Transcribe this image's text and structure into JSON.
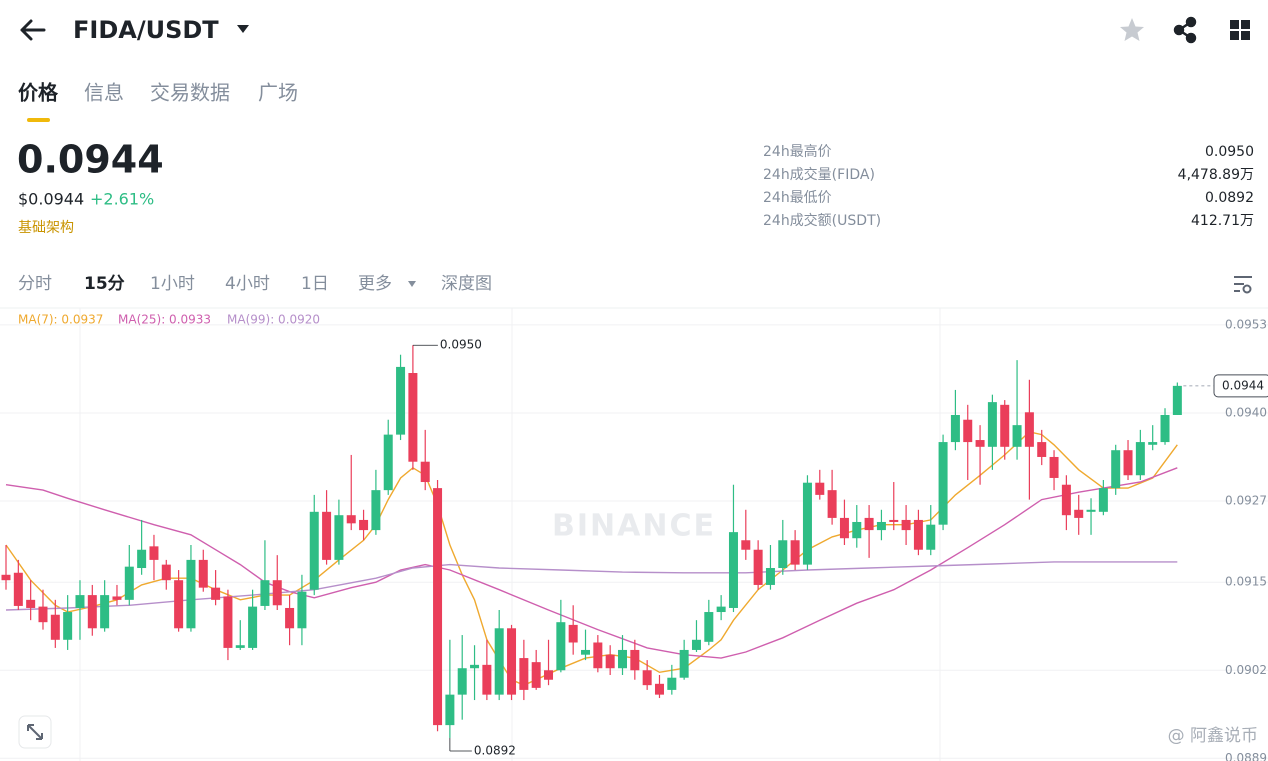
{
  "header": {
    "pair": "FIDA/USDT"
  },
  "tabs": [
    "价格",
    "信息",
    "交易数据",
    "广场"
  ],
  "price": {
    "last": "0.0944",
    "usd": "$0.0944",
    "change": "+2.61%",
    "tag": "基础架构"
  },
  "stats": [
    {
      "label": "24h最高价",
      "value": "0.0950"
    },
    {
      "label": "24h成交量(FIDA)",
      "value": "4,478.89万"
    },
    {
      "label": "24h最低价",
      "value": "0.0892"
    },
    {
      "label": "24h成交额(USDT)",
      "value": "412.71万"
    }
  ],
  "intervals": [
    "分时",
    "15分",
    "1小时",
    "4小时",
    "1日",
    "更多",
    "深度图"
  ],
  "corner_watermark": "@ 阿鑫说币",
  "chart_data": {
    "type": "candlestick",
    "watermark": "BINANCE",
    "up_color": "#2ebd85",
    "down_color": "#ea3e5a",
    "ylim": [
      0.08886,
      0.09555
    ],
    "yticks": [
      0.0953,
      {
        "value": 0.094,
        "label": "0.0940"
      },
      0.0927,
      0.0915,
      0.0902,
      0.0889
    ],
    "grid": true,
    "current_price": 0.0944,
    "max_label": {
      "value": 0.095,
      "label": "0.0950"
    },
    "min_label": {
      "value": 0.0892,
      "label": "0.0892"
    },
    "candles": {
      "open": [
        0.09161,
        0.09164,
        0.09124,
        0.09114,
        0.09102,
        0.09065,
        0.09112,
        0.09131,
        0.09082,
        0.09129,
        0.09124,
        0.09171,
        0.09203,
        0.09176,
        0.09153,
        0.09082,
        0.09183,
        0.09142,
        0.09129,
        0.09053,
        0.09053,
        0.09115,
        0.09153,
        0.09112,
        0.09082,
        0.09139,
        0.09254,
        0.09183,
        0.09249,
        0.09242,
        0.09227,
        0.09286,
        0.09368,
        0.09459,
        0.09328,
        0.09289,
        0.08939,
        0.08984,
        0.09023,
        0.09028,
        0.08984,
        0.09082,
        0.09038,
        0.09032,
        0.0902,
        0.0902,
        0.09087,
        0.09043,
        0.09061,
        0.09043,
        0.09023,
        0.0905,
        0.0902,
        0.09,
        0.08991,
        0.09009,
        0.0905,
        0.09062,
        0.09106,
        0.09112,
        0.09212,
        0.09198,
        0.09146,
        0.09171,
        0.09212,
        0.09176,
        0.09297,
        0.09286,
        0.09245,
        0.09215,
        0.09245,
        0.09227,
        0.09242,
        0.09242,
        0.09242,
        0.09198,
        0.09235,
        0.09357,
        0.0939,
        0.0936,
        0.0935,
        0.09412,
        0.0935,
        0.09401,
        0.09357,
        0.09335,
        0.09294,
        0.09257,
        0.09254,
        0.09254,
        0.09289,
        0.09345,
        0.09308,
        0.09353,
        0.09357,
        0.09397
      ],
      "high": [
        0.09205,
        0.09183,
        0.09153,
        0.09139,
        0.09124,
        0.09131,
        0.09153,
        0.09146,
        0.09153,
        0.09146,
        0.09205,
        0.09242,
        0.0922,
        0.09183,
        0.09168,
        0.09205,
        0.09198,
        0.09168,
        0.09139,
        0.09094,
        0.09139,
        0.09212,
        0.0919,
        0.09131,
        0.09161,
        0.09279,
        0.09286,
        0.09272,
        0.09338,
        0.09257,
        0.09316,
        0.0939,
        0.09486,
        0.095,
        0.09375,
        0.09301,
        0.09065,
        0.09072,
        0.09057,
        0.09065,
        0.09109,
        0.09087,
        0.09065,
        0.0905,
        0.09065,
        0.09124,
        0.09116,
        0.0908,
        0.09072,
        0.09057,
        0.09072,
        0.09065,
        0.09035,
        0.09013,
        0.09028,
        0.09065,
        0.09094,
        0.09124,
        0.09131,
        0.09294,
        0.09257,
        0.09212,
        0.09205,
        0.09242,
        0.09227,
        0.09308,
        0.09316,
        0.09316,
        0.09272,
        0.09264,
        0.09264,
        0.09257,
        0.09298,
        0.09264,
        0.09257,
        0.09264,
        0.09368,
        0.09434,
        0.09412,
        0.09382,
        0.09427,
        0.09419,
        0.09478,
        0.09449,
        0.09375,
        0.09345,
        0.09308,
        0.09279,
        0.09274,
        0.09301,
        0.09353,
        0.0936,
        0.09375,
        0.09382,
        0.09407,
        0.09445
      ],
      "low": [
        0.09139,
        0.09109,
        0.09094,
        0.0908,
        0.09053,
        0.0905,
        0.09065,
        0.09071,
        0.09077,
        0.09116,
        0.09116,
        0.09161,
        0.09153,
        0.09139,
        0.09077,
        0.09077,
        0.09136,
        0.09116,
        0.09035,
        0.0905,
        0.0905,
        0.09109,
        0.09109,
        0.09057,
        0.09057,
        0.09131,
        0.09176,
        0.09176,
        0.09227,
        0.09212,
        0.0922,
        0.09279,
        0.0936,
        0.09316,
        0.09286,
        0.0893,
        0.0892,
        0.08947,
        0.08976,
        0.08976,
        0.08976,
        0.08976,
        0.08976,
        0.08991,
        0.08998,
        0.09017,
        0.09043,
        0.09035,
        0.09017,
        0.09013,
        0.09013,
        0.09006,
        0.08991,
        0.08979,
        0.08984,
        0.09006,
        0.09047,
        0.09057,
        0.09094,
        0.09106,
        0.09183,
        0.09139,
        0.09139,
        0.09161,
        0.09168,
        0.09168,
        0.09272,
        0.09235,
        0.09205,
        0.09201,
        0.09186,
        0.09212,
        0.09227,
        0.09205,
        0.0919,
        0.0919,
        0.09227,
        0.09345,
        0.09301,
        0.09294,
        0.09316,
        0.09331,
        0.09331,
        0.09272,
        0.09323,
        0.09286,
        0.09227,
        0.0922,
        0.0922,
        0.09249,
        0.09279,
        0.09301,
        0.09301,
        0.09345,
        0.09353,
        0.09397
      ],
      "close": [
        0.09153,
        0.09115,
        0.09112,
        0.09091,
        0.09065,
        0.09106,
        0.09131,
        0.09082,
        0.09131,
        0.09124,
        0.09173,
        0.09198,
        0.09183,
        0.09153,
        0.09082,
        0.09183,
        0.09142,
        0.09124,
        0.09053,
        0.09057,
        0.09114,
        0.09153,
        0.09116,
        0.09082,
        0.09136,
        0.09254,
        0.09183,
        0.09249,
        0.09237,
        0.09227,
        0.09286,
        0.09368,
        0.09468,
        0.09328,
        0.09298,
        0.08939,
        0.08984,
        0.09023,
        0.09028,
        0.08984,
        0.09082,
        0.08984,
        0.08991,
        0.08994,
        0.09006,
        0.09091,
        0.09061,
        0.0905,
        0.09023,
        0.09023,
        0.0905,
        0.0902,
        0.08998,
        0.08984,
        0.09009,
        0.0905,
        0.09065,
        0.09106,
        0.09114,
        0.09224,
        0.09198,
        0.09146,
        0.09171,
        0.09212,
        0.09176,
        0.09297,
        0.09279,
        0.09245,
        0.09215,
        0.09239,
        0.09227,
        0.09239,
        0.09239,
        0.09227,
        0.09198,
        0.09235,
        0.09357,
        0.09397,
        0.09357,
        0.0935,
        0.09416,
        0.0935,
        0.09382,
        0.0935,
        0.09335,
        0.09304,
        0.09249,
        0.09245,
        0.09257,
        0.09289,
        0.09345,
        0.09308,
        0.09357,
        0.09357,
        0.09397,
        0.0944
      ]
    },
    "series": [
      {
        "name": "MA(7): 0.0937",
        "color": "#efa92f",
        "x": [
          0,
          2,
          4,
          5,
          7,
          9,
          11,
          13,
          15,
          17,
          19,
          21,
          23,
          25,
          27,
          29,
          30,
          31,
          32,
          33,
          34,
          35,
          36,
          37,
          38,
          39,
          40,
          41,
          42,
          43,
          45,
          47,
          49,
          51,
          53,
          55,
          57,
          58,
          59,
          61,
          63,
          65,
          67,
          69,
          71,
          73,
          75,
          77,
          79,
          81,
          83,
          84,
          85,
          87,
          89,
          91,
          93,
          95
        ],
        "values": [
          0.09205,
          0.09153,
          0.09116,
          0.09106,
          0.09114,
          0.09124,
          0.09146,
          0.09156,
          0.09156,
          0.09139,
          0.09124,
          0.09131,
          0.09131,
          0.09153,
          0.09183,
          0.09212,
          0.09235,
          0.09272,
          0.09304,
          0.09319,
          0.09308,
          0.09264,
          0.09205,
          0.09161,
          0.09124,
          0.09065,
          0.09035,
          0.09006,
          0.08998,
          0.09006,
          0.09023,
          0.09038,
          0.09043,
          0.09038,
          0.09017,
          0.09023,
          0.0905,
          0.09065,
          0.09094,
          0.09139,
          0.09168,
          0.09198,
          0.09217,
          0.09227,
          0.09235,
          0.09235,
          0.09242,
          0.09279,
          0.09308,
          0.09338,
          0.09372,
          0.09368,
          0.09353,
          0.09316,
          0.09289,
          0.09289,
          0.09304,
          0.09353
        ]
      },
      {
        "name": "MA(25): 0.0933",
        "color": "#cf5fae",
        "x": [
          0,
          3,
          5,
          8,
          12,
          15,
          17,
          19,
          21,
          23,
          25,
          28,
          30,
          32,
          34,
          36,
          40,
          44,
          48,
          52,
          55,
          58,
          60,
          63,
          66,
          69,
          72,
          75,
          78,
          81,
          84,
          87,
          89,
          92,
          95
        ],
        "values": [
          0.09294,
          0.09286,
          0.09274,
          0.09257,
          0.09235,
          0.0922,
          0.09198,
          0.09176,
          0.0915,
          0.09136,
          0.09127,
          0.09142,
          0.0915,
          0.09168,
          0.09176,
          0.09168,
          0.09139,
          0.09109,
          0.0908,
          0.09053,
          0.09043,
          0.09038,
          0.09047,
          0.09068,
          0.09094,
          0.09119,
          0.09139,
          0.09168,
          0.09201,
          0.09235,
          0.09272,
          0.09283,
          0.09289,
          0.09298,
          0.09319
        ]
      },
      {
        "name": "MA(99): 0.0920",
        "color": "#b68fca",
        "x": [
          0,
          5,
          10,
          15,
          20,
          25,
          30,
          33,
          36,
          40,
          45,
          50,
          55,
          60,
          65,
          70,
          75,
          80,
          85,
          90,
          95
        ],
        "values": [
          0.09109,
          0.09112,
          0.09116,
          0.09124,
          0.09131,
          0.09139,
          0.09156,
          0.09171,
          0.09176,
          0.09171,
          0.09168,
          0.09165,
          0.09164,
          0.09164,
          0.09168,
          0.09171,
          0.09174,
          0.09177,
          0.0918,
          0.0918,
          0.0918
        ]
      }
    ]
  }
}
